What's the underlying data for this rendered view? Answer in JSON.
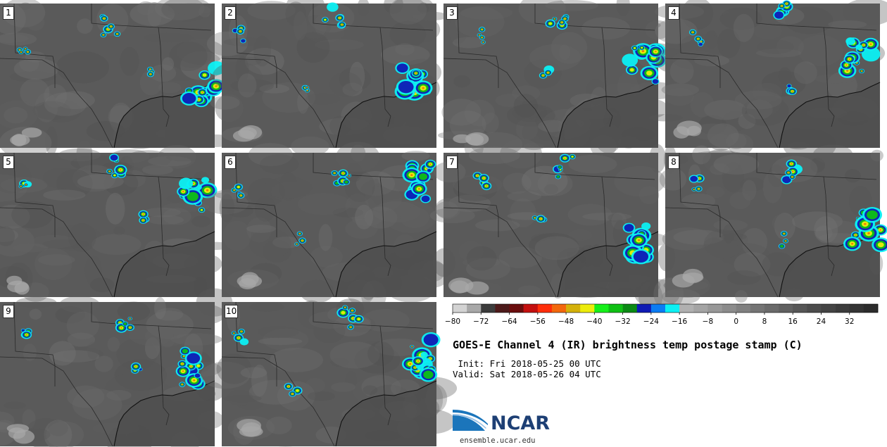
{
  "panels": [
    {
      "label": "1"
    },
    {
      "label": "2"
    },
    {
      "label": "3"
    },
    {
      "label": "4"
    },
    {
      "label": "5"
    },
    {
      "label": "6"
    },
    {
      "label": "7"
    },
    {
      "label": "8"
    },
    {
      "label": "9"
    },
    {
      "label": "10"
    }
  ],
  "colorbar": {
    "ticks": [
      "−80",
      "−72",
      "−64",
      "−56",
      "−48",
      "−40",
      "−32",
      "−24",
      "−16",
      "−8",
      "0",
      "8",
      "16",
      "24",
      "32"
    ],
    "colors": [
      "#d3d3d3",
      "#a8a8a8",
      "#3c3c3c",
      "#4d1a1a",
      "#6a0d0d",
      "#c4100f",
      "#ff2e0a",
      "#f3680d",
      "#d4b10a",
      "#ecec0c",
      "#16f01a",
      "#0fc014",
      "#0b8a14",
      "#0f1ab4",
      "#0b7cf3",
      "#0cf0f3",
      "#b0b0b0",
      "#a4a4a4",
      "#989898",
      "#8c8c8c",
      "#808080",
      "#747474",
      "#6a6a6a",
      "#606060",
      "#565656",
      "#4c4c4c",
      "#444444",
      "#3c3c3c",
      "#343434",
      "#2c2c2c"
    ]
  },
  "title": "GOES-E Channel 4 (IR) brightness temp postage stamp (C)",
  "init": " Init: Fri 2018-05-25 00 UTC",
  "valid": "Valid: Sat 2018-05-26 04 UTC",
  "logo_text": "NCAR",
  "url": "ensemble.ucar.edu",
  "colors": {
    "ncar_blue": "#1d3f74",
    "ncar_swoosh": "#1b75bb"
  }
}
